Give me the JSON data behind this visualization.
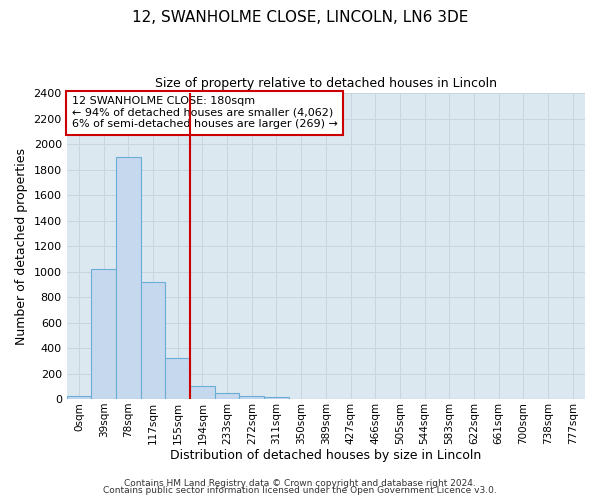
{
  "title": "12, SWANHOLME CLOSE, LINCOLN, LN6 3DE",
  "subtitle": "Size of property relative to detached houses in Lincoln",
  "xlabel": "Distribution of detached houses by size in Lincoln",
  "ylabel": "Number of detached properties",
  "bar_labels": [
    "0sqm",
    "39sqm",
    "78sqm",
    "117sqm",
    "155sqm",
    "194sqm",
    "233sqm",
    "272sqm",
    "311sqm",
    "350sqm",
    "389sqm",
    "427sqm",
    "466sqm",
    "505sqm",
    "544sqm",
    "583sqm",
    "622sqm",
    "661sqm",
    "700sqm",
    "738sqm",
    "777sqm"
  ],
  "bar_values": [
    20,
    1020,
    1900,
    920,
    320,
    105,
    50,
    25,
    15,
    0,
    0,
    0,
    0,
    0,
    0,
    0,
    0,
    0,
    0,
    0,
    0
  ],
  "bar_color": "#c5d8ed",
  "bar_edge_color": "#6aaed6",
  "bar_width": 1.0,
  "vline_x": 4.5,
  "vline_color": "#cc0000",
  "ylim": [
    0,
    2400
  ],
  "yticks": [
    0,
    200,
    400,
    600,
    800,
    1000,
    1200,
    1400,
    1600,
    1800,
    2000,
    2200,
    2400
  ],
  "grid_color": "#c8d4e0",
  "bg_color": "#dce8f0",
  "annotation_title": "12 SWANHOLME CLOSE: 180sqm",
  "annotation_line1": "← 94% of detached houses are smaller (4,062)",
  "annotation_line2": "6% of semi-detached houses are larger (269) →",
  "annotation_box_color": "#cc0000",
  "footer_line1": "Contains HM Land Registry data © Crown copyright and database right 2024.",
  "footer_line2": "Contains public sector information licensed under the Open Government Licence v3.0."
}
